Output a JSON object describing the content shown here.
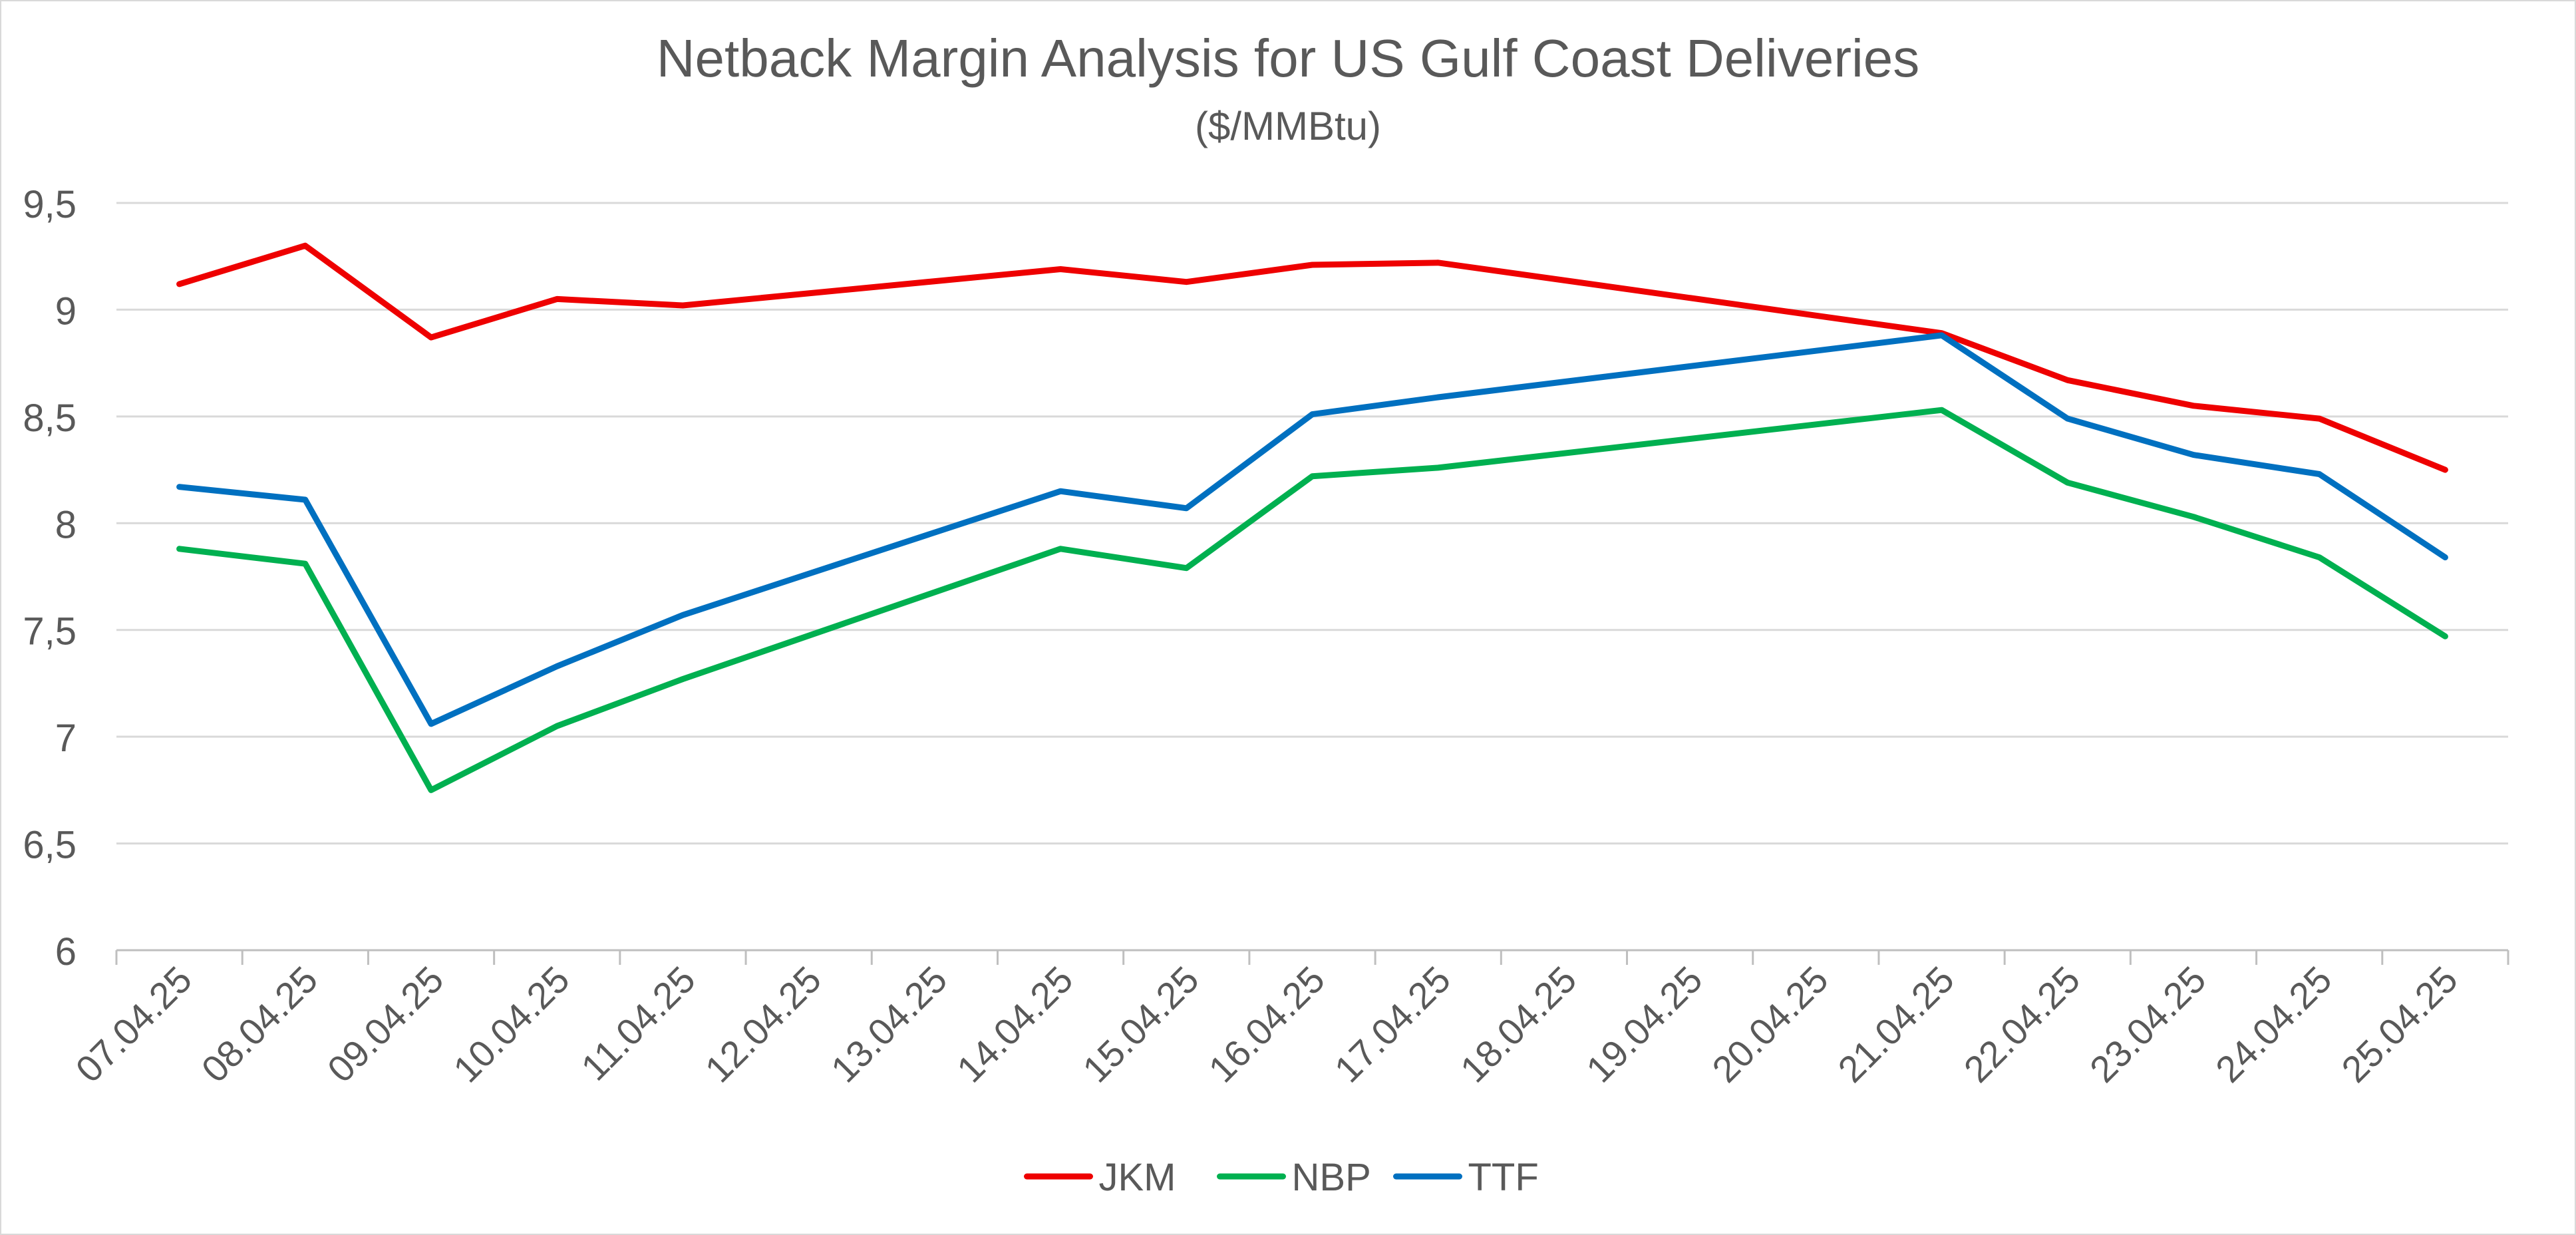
{
  "chart_data": {
    "type": "line",
    "title": "Netback Margin Analysis for US Gulf Coast Deliveries",
    "subtitle": "($/MMBtu)",
    "xlabel": "",
    "ylabel": "",
    "ylim": [
      6,
      9.5
    ],
    "y_ticks": [
      6,
      6.5,
      7,
      7.5,
      8,
      8.5,
      9,
      9.5
    ],
    "y_tick_labels": [
      "6",
      "6,5",
      "7",
      "7,5",
      "8",
      "8,5",
      "9",
      "9,5"
    ],
    "grid": true,
    "legend_position": "bottom",
    "categories": [
      "07.04.25",
      "08.04.25",
      "09.04.25",
      "10.04.25",
      "11.04.25",
      "12.04.25",
      "13.04.25",
      "14.04.25",
      "15.04.25",
      "16.04.25",
      "17.04.25",
      "18.04.25",
      "19.04.25",
      "20.04.25",
      "21.04.25",
      "22.04.25",
      "23.04.25",
      "24.04.25",
      "25.04.25"
    ],
    "series": [
      {
        "name": "JKM",
        "color": "#ee0000",
        "values": [
          9.12,
          9.3,
          8.87,
          9.05,
          9.02,
          null,
          null,
          9.19,
          9.13,
          9.21,
          9.22,
          null,
          null,
          null,
          8.89,
          8.67,
          8.55,
          8.49,
          8.25
        ]
      },
      {
        "name": "NBP",
        "color": "#00b050",
        "values": [
          7.88,
          7.81,
          6.75,
          7.05,
          7.27,
          null,
          null,
          7.88,
          7.79,
          8.22,
          8.26,
          null,
          null,
          null,
          8.53,
          8.19,
          8.03,
          7.84,
          7.47
        ]
      },
      {
        "name": "TTF",
        "color": "#0070c0",
        "values": [
          8.17,
          8.11,
          7.06,
          7.33,
          7.57,
          null,
          null,
          8.15,
          8.07,
          8.51,
          8.59,
          null,
          null,
          null,
          8.88,
          8.49,
          8.32,
          8.23,
          7.84
        ]
      }
    ]
  }
}
